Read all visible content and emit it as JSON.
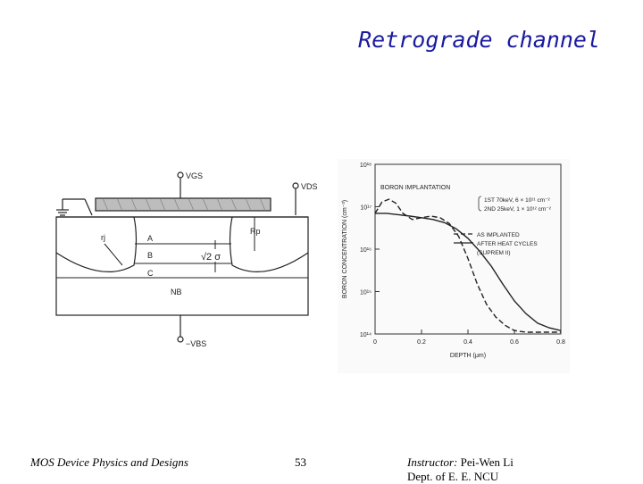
{
  "slide": {
    "title": "Retrograde channel",
    "footer_left": "MOS Device Physics and Designs",
    "page_number": "53",
    "instructor_label": "Instructor:",
    "instructor_name": " Pei-Wen Li",
    "department": "Dept. of E. E. NCU"
  },
  "device_diagram": {
    "vgs": "VGS",
    "vds": "VDS",
    "vbs": "−VBS",
    "rj": "rj",
    "rp": "Rp",
    "region_a": "A",
    "region_b": "B",
    "region_c": "C",
    "nb": "NB",
    "sigma": "√2 σ"
  },
  "chart_data": {
    "type": "line",
    "title": "",
    "xlabel": "DEPTH (μm)",
    "ylabel": "BORON CONCENTRATION (cm⁻³)",
    "xlim": [
      0,
      0.8
    ],
    "ylim_log10": [
      14,
      18
    ],
    "y_scale": "log",
    "x_ticks": [
      "0",
      "0.2",
      "0.4",
      "0.6",
      "0.8"
    ],
    "y_ticks": [
      "10¹⁴",
      "10¹⁵",
      "10¹⁶",
      "10¹⁷",
      "10¹⁸"
    ],
    "annotation_title": "BORON IMPLANTATION",
    "annotation_lines": [
      "1ST 70keV, 6 × 10¹¹ cm⁻²",
      "2ND 25keV, 1 × 10¹² cm⁻²"
    ],
    "series": [
      {
        "name": "AS IMPLANTED",
        "style": "dashed",
        "x": [
          0,
          0.03,
          0.06,
          0.09,
          0.12,
          0.16,
          0.2,
          0.24,
          0.28,
          0.32,
          0.36,
          0.4,
          0.44,
          0.48,
          0.52,
          0.56,
          0.6,
          0.65,
          0.7,
          0.75,
          0.8
        ],
        "y": [
          7e+16,
          1.3e+17,
          1.5e+17,
          1.2e+17,
          7e+16,
          5e+16,
          5.5e+16,
          6e+16,
          5.5e+16,
          4e+16,
          2e+16,
          6000000000000000.0,
          1500000000000000.0,
          500000000000000.0,
          250000000000000.0,
          160000000000000.0,
          120000000000000.0,
          110000000000000.0,
          110000000000000.0,
          110000000000000.0,
          110000000000000.0
        ]
      },
      {
        "name": "AFTER HEAT CYCLES",
        "style": "solid",
        "x": [
          0,
          0.05,
          0.1,
          0.15,
          0.2,
          0.25,
          0.3,
          0.35,
          0.4,
          0.45,
          0.5,
          0.55,
          0.6,
          0.65,
          0.7,
          0.75,
          0.8
        ],
        "y": [
          7e+16,
          7e+16,
          6.5e+16,
          6e+16,
          5.5e+16,
          5e+16,
          4.2e+16,
          3e+16,
          1.8e+16,
          9000000000000000.0,
          4000000000000000.0,
          1500000000000000.0,
          600000000000000.0,
          300000000000000.0,
          180000000000000.0,
          140000000000000.0,
          120000000000000.0
        ]
      }
    ],
    "legend": [
      "AS IMPLANTED",
      "AFTER HEAT CYCLES",
      "(SUPREM II)"
    ],
    "legend_position": "top-right"
  }
}
